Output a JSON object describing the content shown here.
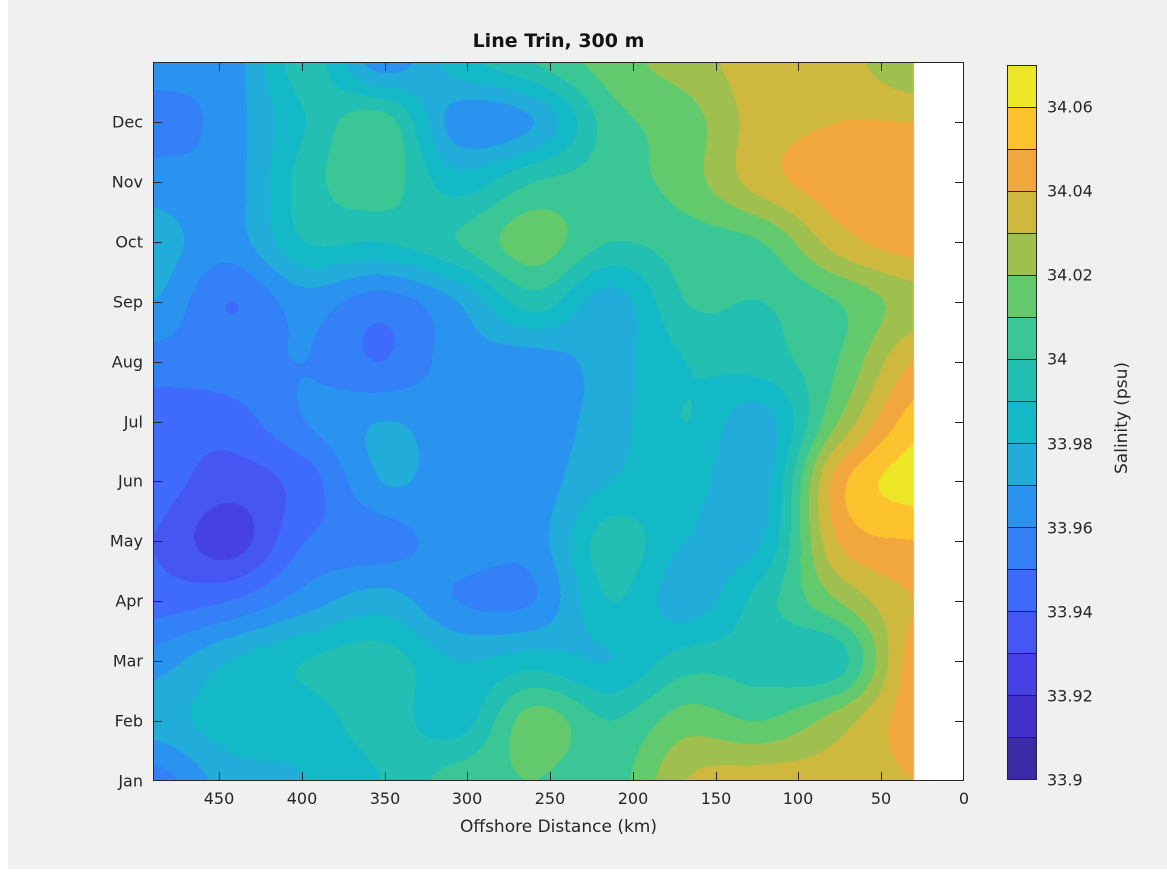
{
  "figure": {
    "title": "Line Trin, 300 m",
    "background_color": "#f0f0f0",
    "axes_color": "#262626"
  },
  "axes": {
    "xlabel": "Offshore Distance (km)",
    "x_tick_values": [
      450,
      400,
      350,
      300,
      250,
      200,
      150,
      100,
      50,
      0
    ],
    "x_tick_labels": [
      "450",
      "400",
      "350",
      "300",
      "250",
      "200",
      "150",
      "100",
      "50",
      "0"
    ],
    "y_tick_labels": [
      "Jan",
      "Feb",
      "Mar",
      "Apr",
      "May",
      "Jun",
      "Jul",
      "Aug",
      "Sep",
      "Oct",
      "Nov",
      "Dec"
    ],
    "x_range": [
      490,
      0
    ],
    "x_axis_reversed": true,
    "y_range_month_index": [
      1,
      13
    ],
    "tick_direction": "in",
    "box": true
  },
  "colorbar": {
    "label": "Salinity (psu)",
    "tick_labels": [
      "33.9",
      "33.92",
      "33.94",
      "33.96",
      "33.98",
      "34",
      "34.02",
      "34.04",
      "34.06"
    ],
    "tick_values": [
      33.9,
      33.92,
      33.94,
      33.96,
      33.98,
      34.0,
      34.02,
      34.04,
      34.06
    ],
    "min": 33.9,
    "max": 34.07,
    "step": 0.01,
    "colors_low_to_high": [
      "#3b2ca5",
      "#4331cb",
      "#4541e5",
      "#4556f3",
      "#3f6bfc",
      "#3380f7",
      "#2a93f0",
      "#21acd9",
      "#14b9c8",
      "#22bfb2",
      "#3ac795",
      "#62ca6c",
      "#9fc04f",
      "#ceb83d",
      "#f2a73c",
      "#fcc32e",
      "#ede727"
    ]
  },
  "chart_data": {
    "type": "contourf-heatmap",
    "title": "Line Trin, 300 m",
    "xlabel": "Offshore Distance (km)",
    "zlabel": "Salinity (psu)",
    "x_km": [
      490,
      444,
      398,
      352,
      306,
      260,
      214,
      168,
      122,
      76,
      30
    ],
    "months": [
      "Jan",
      "Feb",
      "Mar",
      "Apr",
      "May",
      "Jun",
      "Jul",
      "Aug",
      "Sep",
      "Oct",
      "Nov",
      "Dec",
      "Jan"
    ],
    "no_data_region_km": [
      30,
      0
    ],
    "no_data_color": "#ffffff",
    "contour_levels_min": 33.9,
    "contour_levels_max": 34.07,
    "contour_interval": 0.01,
    "values_by_month_row": [
      [
        33.955,
        33.975,
        33.98,
        33.99,
        34.005,
        34.01,
        34.005,
        34.03,
        34.035,
        34.035,
        34.04
      ],
      [
        33.975,
        33.985,
        33.985,
        33.995,
        33.985,
        34.015,
        34.0,
        34.015,
        34.01,
        34.025,
        34.045
      ],
      [
        33.965,
        33.98,
        33.99,
        33.995,
        33.98,
        33.985,
        33.98,
        33.995,
        33.995,
        33.995,
        34.045
      ],
      [
        33.945,
        33.95,
        33.965,
        33.975,
        33.96,
        33.96,
        33.99,
        33.975,
        33.995,
        34.02,
        34.04
      ],
      [
        33.94,
        33.925,
        33.95,
        33.955,
        33.965,
        33.965,
        33.995,
        33.98,
        33.98,
        34.04,
        34.05
      ],
      [
        33.945,
        33.935,
        33.945,
        33.97,
        33.965,
        33.965,
        33.98,
        33.985,
        33.975,
        34.045,
        34.065
      ],
      [
        33.945,
        33.945,
        33.96,
        33.97,
        33.965,
        33.965,
        33.975,
        33.99,
        33.975,
        34.02,
        34.055
      ],
      [
        33.955,
        33.955,
        33.96,
        33.95,
        33.965,
        33.965,
        33.975,
        33.99,
        33.995,
        34.01,
        34.04
      ],
      [
        33.97,
        33.95,
        33.965,
        33.955,
        33.97,
        33.995,
        33.975,
        34.0,
        34.0,
        34.01,
        34.025
      ],
      [
        33.975,
        33.965,
        33.99,
        33.99,
        34.0,
        34.015,
        34.0,
        34.005,
        34.01,
        34.035,
        34.045
      ],
      [
        33.965,
        33.965,
        33.995,
        34.005,
        33.985,
        34.0,
        34.005,
        34.015,
        34.035,
        34.045,
        34.045
      ],
      [
        33.955,
        33.965,
        33.99,
        34.005,
        33.965,
        33.97,
        34.005,
        34.015,
        34.035,
        34.04,
        34.04
      ],
      [
        33.965,
        33.965,
        33.995,
        33.965,
        33.985,
        34.0,
        34.015,
        34.025,
        34.035,
        34.035,
        34.02
      ]
    ]
  }
}
